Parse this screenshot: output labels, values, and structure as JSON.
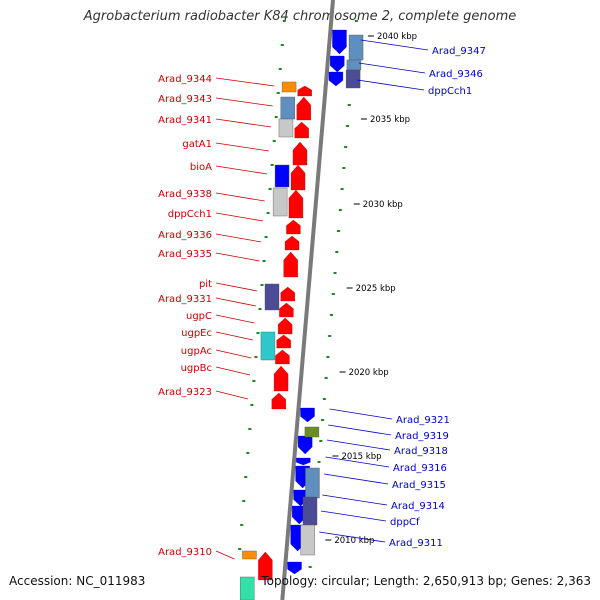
{
  "title": "Agrobacterium radiobacter K84 chromosome 2, complete genome",
  "footer": {
    "accession": "Accession: NC_011983",
    "topology": "Topology: circular; Length: 2,650,913 bp; Genes: 2,363"
  },
  "colors": {
    "backbone": "#7a7a7a",
    "reverse_gene": "#ff0000",
    "forward_gene": "#0000ff",
    "cds_lightblue": "#5f8fbf",
    "cds_grey": "#c8c8c8",
    "cds_navy": "#4b4b96",
    "cds_cyan": "#2ec8c8",
    "cds_orange": "#ff8c00",
    "cds_olive": "#6b8e23",
    "cds_teal": "#33e0a8",
    "gc_dots": "#1a8a1a",
    "label_left": "#cc0000",
    "label_right": "#0000cc"
  },
  "ticks": [
    "2040 kbp",
    "2035 kbp",
    "2030 kbp",
    "2025 kbp",
    "2020 kbp",
    "2015 kbp",
    "2010 kbp"
  ],
  "left_labels": [
    "Arad_9344",
    "Arad_9343",
    "Arad_9341",
    "gatA1",
    "bioA",
    "Arad_9338",
    "dppCch1",
    "Arad_9336",
    "Arad_9335",
    "pit",
    "Arad_9331",
    "ugpC",
    "ugpEc",
    "ugpAc",
    "ugpBc",
    "Arad_9323",
    "Arad_9310"
  ],
  "right_labels": [
    "Arad_9347",
    "Arad_9346",
    "dppCch1",
    "Arad_9321",
    "Arad_9319",
    "Arad_9318",
    "Arad_9316",
    "Arad_9315",
    "Arad_9314",
    "dppCf",
    "Arad_9311"
  ]
}
